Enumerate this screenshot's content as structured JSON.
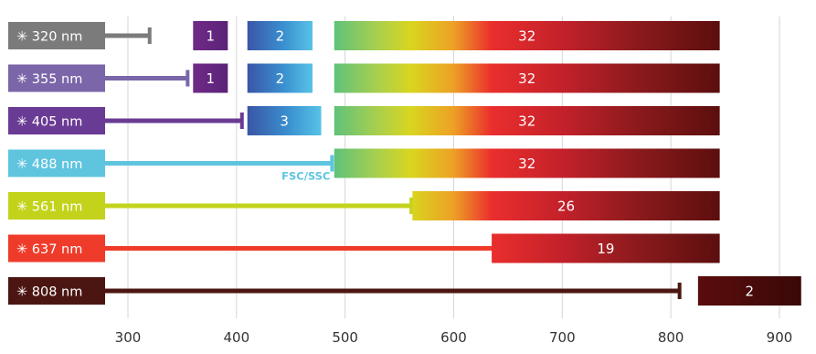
{
  "chart_data": {
    "type": "bar",
    "x_ticks": [
      300,
      400,
      500,
      600,
      700,
      800,
      900
    ],
    "xlim": [
      280,
      920
    ],
    "grid": true,
    "lasers": [
      {
        "label": "✳ 320 nm",
        "wavelength": 320,
        "color": "#7b7b7b",
        "channels": [
          {
            "count_label": "1",
            "x_start": 360,
            "x_end": 392,
            "fill": "purple"
          },
          {
            "count_label": "2",
            "x_start": 410,
            "x_end": 470,
            "fill": "blue"
          },
          {
            "count_label": "32",
            "x_start": 490,
            "x_end": 845,
            "fill": "spectrum"
          }
        ]
      },
      {
        "label": "✳ 355 nm",
        "wavelength": 355,
        "color": "#7a66a8",
        "channels": [
          {
            "count_label": "1",
            "x_start": 360,
            "x_end": 392,
            "fill": "purple"
          },
          {
            "count_label": "2",
            "x_start": 410,
            "x_end": 470,
            "fill": "blue"
          },
          {
            "count_label": "32",
            "x_start": 490,
            "x_end": 845,
            "fill": "spectrum"
          }
        ]
      },
      {
        "label": "✳ 405 nm",
        "wavelength": 405,
        "color": "#6a3b94",
        "channels": [
          {
            "count_label": "3",
            "x_start": 410,
            "x_end": 478,
            "fill": "blue"
          },
          {
            "count_label": "32",
            "x_start": 490,
            "x_end": 845,
            "fill": "spectrum"
          }
        ]
      },
      {
        "label": "✳ 488 nm",
        "wavelength": 488,
        "color": "#5fc5df",
        "extra_label": "FSC/SSC",
        "channels": [
          {
            "count_label": "32",
            "x_start": 490,
            "x_end": 845,
            "fill": "spectrum"
          }
        ]
      },
      {
        "label": "✳ 561 nm",
        "wavelength": 561,
        "color": "#c3d31c",
        "channels": [
          {
            "count_label": "26",
            "x_start": 562,
            "x_end": 845,
            "fill": "spectrum"
          }
        ]
      },
      {
        "label": "✳ 637 nm",
        "wavelength": 637,
        "color": "#ef3b2a",
        "channels": [
          {
            "count_label": "19",
            "x_start": 635,
            "x_end": 845,
            "fill": "spectrum"
          }
        ]
      },
      {
        "label": "✳ 808 nm",
        "wavelength": 808,
        "color": "#4b1612",
        "channels": [
          {
            "count_label": "2",
            "x_start": 825,
            "x_end": 920,
            "fill": "dark"
          }
        ]
      }
    ]
  }
}
